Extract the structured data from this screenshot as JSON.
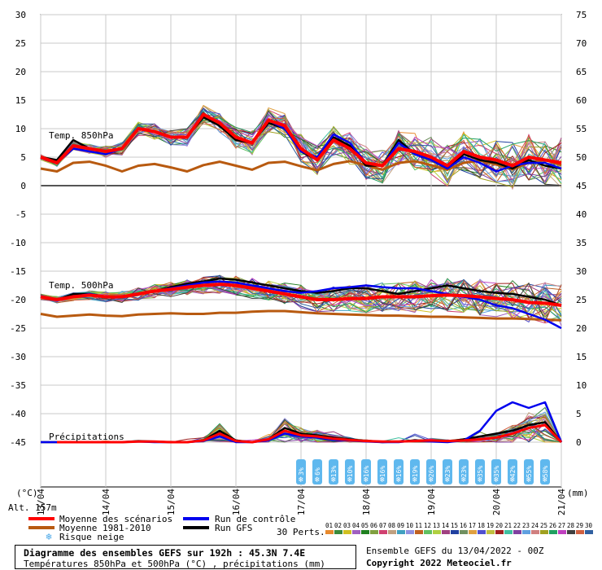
{
  "chart_data": {
    "type": "line",
    "left_axis": {
      "label": "(°C)",
      "ticks": [
        30,
        25,
        20,
        15,
        10,
        5,
        0,
        -5,
        -10,
        -15,
        -20,
        -25,
        -30,
        -35,
        -40,
        -45
      ]
    },
    "right_axis": {
      "label": "(mm)",
      "ticks": [
        75,
        70,
        65,
        60,
        55,
        50,
        45,
        40,
        35,
        30,
        25,
        20,
        15,
        10,
        5,
        0
      ]
    },
    "x_ticks": [
      "13/04",
      "14/04",
      "15/04",
      "16/04",
      "17/04",
      "18/04",
      "19/04",
      "20/04",
      "21/04"
    ],
    "altitude_label": "Alt. 157m",
    "panel_labels": {
      "t850": "Temp. 850hPa",
      "t500": "Temp. 500hPa",
      "precip": "Précipitations"
    },
    "snow_risk_pct": [
      "3%",
      "6%",
      "13%",
      "10%",
      "16%",
      "16%",
      "16%",
      "19%",
      "26%",
      "23%",
      "23%",
      "35%",
      "35%",
      "42%",
      "55%",
      "58%"
    ],
    "snow_risk_x": [
      17.0,
      17.25,
      17.5,
      17.75,
      18.0,
      18.25,
      18.5,
      18.75,
      19.0,
      19.25,
      19.5,
      19.75,
      20.0,
      20.25,
      20.5,
      20.75
    ],
    "t850": {
      "x": [
        13.0,
        13.25,
        13.5,
        13.75,
        14.0,
        14.25,
        14.5,
        14.75,
        15.0,
        15.25,
        15.5,
        15.75,
        16.0,
        16.25,
        16.5,
        16.75,
        17.0,
        17.25,
        17.5,
        17.75,
        18.0,
        18.25,
        18.5,
        18.75,
        19.0,
        19.25,
        19.5,
        19.75,
        20.0,
        20.25,
        20.5,
        20.75,
        21.0
      ],
      "mean": [
        5,
        4,
        7,
        6.5,
        6,
        6.5,
        10,
        9.5,
        8.5,
        8.5,
        12.5,
        11,
        8.5,
        7.5,
        11.5,
        10.5,
        6.5,
        4.5,
        8,
        6.5,
        4,
        3.5,
        6.5,
        6,
        5,
        3.5,
        6,
        5,
        4.5,
        3.5,
        5,
        4.5,
        4
      ],
      "control": [
        5,
        4,
        6.5,
        6,
        5.5,
        6.5,
        10,
        9.5,
        8.5,
        8.5,
        12.5,
        11,
        8.5,
        7.5,
        11.5,
        10,
        6,
        5,
        9,
        7.5,
        4,
        3.5,
        7.5,
        5.5,
        4.5,
        3,
        5,
        4,
        2.5,
        3.5,
        4,
        4,
        3
      ],
      "gfs": [
        5,
        4.5,
        8,
        6.5,
        6,
        6.5,
        10,
        9.5,
        8.5,
        8.5,
        12,
        10.5,
        8,
        7.5,
        11,
        10,
        6,
        4.5,
        8.5,
        7,
        3.5,
        3.5,
        8,
        5.5,
        4.5,
        3,
        5.5,
        4.5,
        4,
        3,
        4.5,
        3.5,
        3
      ],
      "clim": [
        3,
        2.5,
        4,
        4.2,
        3.5,
        2.5,
        3.5,
        3.8,
        3.2,
        2.5,
        3.6,
        4.2,
        3.5,
        2.8,
        4,
        4.2,
        3.4,
        2.7,
        3.8,
        4.3,
        3.6,
        2.8,
        4,
        4.3,
        3.6,
        2.8,
        4,
        4.4,
        3.7,
        2.9,
        4,
        4.5,
        3.6
      ]
    },
    "t500": {
      "x": [
        13.0,
        13.25,
        13.5,
        13.75,
        14.0,
        14.25,
        14.5,
        14.75,
        15.0,
        15.25,
        15.5,
        15.75,
        16.0,
        16.25,
        16.5,
        16.75,
        17.0,
        17.25,
        17.5,
        17.75,
        18.0,
        18.25,
        18.5,
        18.75,
        19.0,
        19.25,
        19.5,
        19.75,
        20.0,
        20.25,
        20.5,
        20.75,
        21.0
      ],
      "mean": [
        -19.5,
        -20,
        -19.5,
        -19.2,
        -19.5,
        -19.5,
        -19,
        -18.5,
        -18.2,
        -17.8,
        -17.5,
        -17.3,
        -17.5,
        -18,
        -18.5,
        -19,
        -19.5,
        -20,
        -20,
        -19.8,
        -19.8,
        -19.5,
        -19.5,
        -19.5,
        -19.3,
        -19.2,
        -19.3,
        -19.5,
        -19.8,
        -20,
        -20.5,
        -20.6,
        -21
      ],
      "control": [
        -19.5,
        -20,
        -19.5,
        -19,
        -19.5,
        -19.5,
        -19,
        -18.5,
        -18,
        -17.5,
        -17,
        -16.8,
        -17,
        -17.5,
        -18,
        -18.5,
        -18.8,
        -18.5,
        -18,
        -17.8,
        -17.5,
        -17.8,
        -18,
        -18,
        -18.5,
        -19,
        -19.5,
        -20,
        -21,
        -21.5,
        -22.5,
        -23.5,
        -25
      ],
      "gfs": [
        -19.5,
        -20,
        -19,
        -19,
        -19.5,
        -19.5,
        -19,
        -18.5,
        -17.8,
        -17.2,
        -16.8,
        -16.3,
        -16.5,
        -17,
        -17.5,
        -18,
        -18.5,
        -18.8,
        -18.5,
        -18,
        -18,
        -18.5,
        -19,
        -18.5,
        -18,
        -17.5,
        -18,
        -18.5,
        -18.8,
        -19,
        -19.5,
        -20,
        -21
      ],
      "clim": [
        -22.5,
        -23,
        -22.8,
        -22.6,
        -22.8,
        -22.9,
        -22.6,
        -22.5,
        -22.4,
        -22.5,
        -22.5,
        -22.3,
        -22.3,
        -22.1,
        -22,
        -22,
        -22.2,
        -22.4,
        -22.5,
        -22.6,
        -22.7,
        -22.8,
        -22.8,
        -22.9,
        -23,
        -23,
        -23.1,
        -23.2,
        -23.3,
        -23.3,
        -23.4,
        -23.5,
        -23.6
      ]
    },
    "precip": {
      "x": [
        13.0,
        13.25,
        13.5,
        13.75,
        14.0,
        14.25,
        14.5,
        14.75,
        15.0,
        15.25,
        15.5,
        15.75,
        16.0,
        16.25,
        16.5,
        16.75,
        17.0,
        17.25,
        17.5,
        17.75,
        18.0,
        18.25,
        18.5,
        18.75,
        19.0,
        19.25,
        19.5,
        19.75,
        20.0,
        20.25,
        20.5,
        20.75,
        21.0
      ],
      "mean": [
        0,
        0,
        0,
        0,
        0,
        0,
        0.1,
        0.1,
        0,
        0,
        0.3,
        1.5,
        0.2,
        0,
        0.5,
        2,
        1.2,
        1,
        0.6,
        0.4,
        0.2,
        0.1,
        0.1,
        0.2,
        0.3,
        0.2,
        0.3,
        0.5,
        0.8,
        1.5,
        2.5,
        3,
        0
      ],
      "control": [
        0,
        0,
        0,
        0,
        0,
        0,
        0.1,
        0,
        0,
        0,
        0.2,
        1,
        0,
        0,
        0.3,
        1.5,
        1,
        0.8,
        0.4,
        0.3,
        0.1,
        0,
        0,
        0.3,
        0.1,
        0,
        0.3,
        2,
        5.5,
        7,
        6,
        7,
        0
      ],
      "gfs": [
        0,
        0,
        0,
        0,
        0,
        0,
        0.2,
        0.1,
        0,
        0,
        0.3,
        2,
        0.3,
        0,
        0.5,
        2.5,
        1.5,
        1.2,
        0.8,
        0.5,
        0.2,
        0,
        0.1,
        0.3,
        0.2,
        0.1,
        0.5,
        1,
        1.5,
        2,
        3,
        3.5,
        0
      ]
    }
  },
  "legend": {
    "items": [
      {
        "label": "Moyenne des scénarios",
        "color": "#ff0000"
      },
      {
        "label": "Moyenne 1981-2010",
        "color": "#b85a10"
      },
      {
        "label": "Risque neige",
        "color": "#4aa8e8"
      },
      {
        "label": "Run de contrôle",
        "color": "#0000ee"
      },
      {
        "label": "Run GFS",
        "color": "#000000"
      }
    ],
    "perts_label": "30 Perts.",
    "pert_numbers": [
      "01",
      "02",
      "03",
      "04",
      "05",
      "06",
      "07",
      "08",
      "09",
      "10",
      "11",
      "12",
      "13",
      "14",
      "15",
      "16",
      "17",
      "18",
      "19",
      "20",
      "21",
      "22",
      "23",
      "24",
      "25",
      "26",
      "27",
      "28",
      "29",
      "30"
    ],
    "pert_colors": [
      "#e88a2e",
      "#3a8a3a",
      "#d0c020",
      "#a060c0",
      "#208020",
      "#80a040",
      "#d04070",
      "#c0a080",
      "#40a0c0",
      "#9090e0",
      "#c06020",
      "#60c060",
      "#b0d040",
      "#a04080",
      "#2040a0",
      "#709060",
      "#e0a040",
      "#5050d0",
      "#c0c040",
      "#a02020",
      "#40c0a0",
      "#8040a0",
      "#60a0e0",
      "#d08080",
      "#a0a020",
      "#20a060",
      "#c040c0",
      "#404040",
      "#d06040",
      "#3060a0"
    ]
  },
  "footer": {
    "title": "Diagramme des ensembles GEFS sur 192h : 45.3N 7.4E",
    "subtitle": "Températures 850hPa et 500hPa (°C) , précipitations (mm)",
    "ensemble": "Ensemble GEFS du 13/04/2022 - 00Z",
    "copyright": "Copyright 2022 Meteociel.fr"
  }
}
